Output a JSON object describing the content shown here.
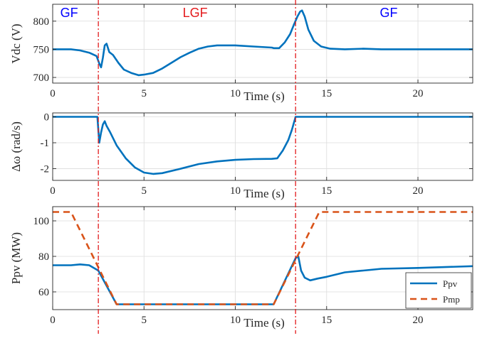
{
  "figure": {
    "regions": [
      {
        "label": "GF",
        "color": "#0000ff",
        "x": 0.9
      },
      {
        "label": "LGF",
        "color": "#e31a1c",
        "x": 7.8
      },
      {
        "label": "GF",
        "color": "#0000ff",
        "x": 18.4
      }
    ],
    "event_lines": [
      2.5,
      13.3
    ],
    "event_color": "#e31a1c"
  },
  "chart_data": [
    {
      "type": "line",
      "xlabel": "Time (s)",
      "ylabel": "Vdc (V)",
      "xlim": [
        0,
        23
      ],
      "ylim": [
        690,
        830
      ],
      "xticks": [
        0,
        5,
        10,
        15,
        20
      ],
      "yticks": [
        700,
        750,
        800
      ],
      "grid": true,
      "series": [
        {
          "color": "#0072bd",
          "style": "solid",
          "points": [
            [
              0,
              750
            ],
            [
              1,
              750
            ],
            [
              1.5,
              748
            ],
            [
              2,
              744
            ],
            [
              2.4,
              738
            ],
            [
              2.55,
              725
            ],
            [
              2.65,
              718
            ],
            [
              2.75,
              735
            ],
            [
              2.85,
              757
            ],
            [
              2.95,
              760
            ],
            [
              3.1,
              745
            ],
            [
              3.3,
              740
            ],
            [
              3.6,
              726
            ],
            [
              3.9,
              714
            ],
            [
              4.3,
              708
            ],
            [
              4.7,
              704
            ],
            [
              5,
              705
            ],
            [
              5.5,
              708
            ],
            [
              6,
              716
            ],
            [
              6.5,
              726
            ],
            [
              7,
              736
            ],
            [
              7.5,
              744
            ],
            [
              8,
              751
            ],
            [
              8.5,
              755
            ],
            [
              9,
              757
            ],
            [
              10,
              757
            ],
            [
              11,
              755
            ],
            [
              12,
              753
            ],
            [
              12.1,
              752
            ],
            [
              12.4,
              752
            ],
            [
              12.7,
              762
            ],
            [
              13,
              777
            ],
            [
              13.2,
              793
            ],
            [
              13.4,
              808
            ],
            [
              13.55,
              817
            ],
            [
              13.65,
              819
            ],
            [
              13.8,
              808
            ],
            [
              14,
              785
            ],
            [
              14.3,
              765
            ],
            [
              14.7,
              755
            ],
            [
              15.2,
              751
            ],
            [
              16,
              750
            ],
            [
              17,
              751
            ],
            [
              18,
              750
            ],
            [
              23,
              750
            ]
          ]
        }
      ]
    },
    {
      "type": "line",
      "xlabel": "Time (s)",
      "ylabel": "Δω (rad/s)",
      "xlim": [
        0,
        23
      ],
      "ylim": [
        -2.45,
        0.15
      ],
      "xticks": [
        0,
        5,
        10,
        15,
        20
      ],
      "yticks": [
        0,
        -1,
        -2
      ],
      "grid": true,
      "series": [
        {
          "color": "#0072bd",
          "style": "solid",
          "points": [
            [
              0,
              0
            ],
            [
              2.45,
              0
            ],
            [
              2.55,
              -1.0
            ],
            [
              2.65,
              -0.6
            ],
            [
              2.75,
              -0.3
            ],
            [
              2.85,
              -0.17
            ],
            [
              2.95,
              -0.35
            ],
            [
              3.15,
              -0.6
            ],
            [
              3.5,
              -1.1
            ],
            [
              4,
              -1.6
            ],
            [
              4.5,
              -1.95
            ],
            [
              5,
              -2.15
            ],
            [
              5.5,
              -2.2
            ],
            [
              6,
              -2.17
            ],
            [
              7,
              -2.0
            ],
            [
              8,
              -1.82
            ],
            [
              9,
              -1.72
            ],
            [
              10,
              -1.66
            ],
            [
              11,
              -1.63
            ],
            [
              12,
              -1.62
            ],
            [
              12.3,
              -1.6
            ],
            [
              12.6,
              -1.3
            ],
            [
              12.9,
              -0.9
            ],
            [
              13.1,
              -0.5
            ],
            [
              13.3,
              0
            ],
            [
              23,
              0
            ]
          ]
        }
      ]
    },
    {
      "type": "line",
      "xlabel": "Time (s)",
      "ylabel": "Ppv (MW)",
      "xlim": [
        0,
        23
      ],
      "ylim": [
        50,
        108
      ],
      "xticks": [
        0,
        5,
        10,
        15,
        20
      ],
      "yticks": [
        60,
        80,
        100
      ],
      "grid": true,
      "legend": "bottom-right",
      "series": [
        {
          "name": "Ppv",
          "color": "#0072bd",
          "style": "solid",
          "points": [
            [
              0,
              75
            ],
            [
              1,
              75
            ],
            [
              1.5,
              75.5
            ],
            [
              2,
              75
            ],
            [
              2.5,
              72
            ],
            [
              3.5,
              53
            ],
            [
              12.1,
              53
            ],
            [
              13.3,
              79
            ],
            [
              13.45,
              80
            ],
            [
              13.6,
              72
            ],
            [
              13.8,
              68
            ],
            [
              14.1,
              66.5
            ],
            [
              14.5,
              67.5
            ],
            [
              15,
              68.5
            ],
            [
              16,
              71
            ],
            [
              17,
              72
            ],
            [
              18,
              73
            ],
            [
              20,
              73.5
            ],
            [
              23,
              74.5
            ]
          ]
        },
        {
          "name": "Pmp",
          "color": "#d95319",
          "style": "dashed",
          "points": [
            [
              0,
              105
            ],
            [
              1,
              105
            ],
            [
              3.5,
              53
            ],
            [
              12.1,
              53
            ],
            [
              14.6,
              105
            ],
            [
              23,
              105
            ]
          ]
        }
      ]
    }
  ]
}
